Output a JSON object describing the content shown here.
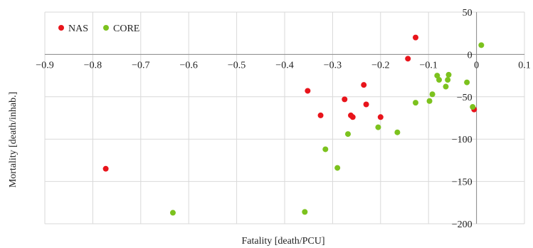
{
  "chart_data": {
    "type": "scatter",
    "title": "",
    "xlabel": "Fatality [death/PCU]",
    "ylabel": "Mortality [death/inhab.]",
    "xlim": [
      -0.9,
      0.1
    ],
    "ylim": [
      -200,
      50
    ],
    "xticks": [
      -0.9,
      -0.8,
      -0.7,
      -0.6,
      -0.5,
      -0.4,
      -0.3,
      -0.2,
      -0.1,
      0,
      0.1
    ],
    "xtick_labels": [
      "−0.9",
      "−0.8",
      "−0.7",
      "−0.6",
      "−0.5",
      "−0.4",
      "−0.3",
      "−0.2",
      "−0.1",
      "0",
      "0.1"
    ],
    "yticks": [
      50,
      0,
      -50,
      -100,
      -150,
      -200
    ],
    "ytick_labels": [
      "50",
      "0",
      "−50",
      "−100",
      "−150",
      "−200"
    ],
    "grid": true,
    "legend_position": "top-left",
    "series": [
      {
        "name": "NAS",
        "color": "#e8141b",
        "points": [
          [
            -0.773,
            -135
          ],
          [
            -0.352,
            -43
          ],
          [
            -0.325,
            -72
          ],
          [
            -0.275,
            -53
          ],
          [
            -0.262,
            -72
          ],
          [
            -0.258,
            -74
          ],
          [
            -0.235,
            -36
          ],
          [
            -0.23,
            -59
          ],
          [
            -0.2,
            -74
          ],
          [
            -0.143,
            -5
          ],
          [
            -0.127,
            20
          ],
          [
            -0.005,
            -65
          ]
        ]
      },
      {
        "name": "CORE",
        "color": "#7cc21e",
        "points": [
          [
            -0.633,
            -187
          ],
          [
            -0.358,
            -186
          ],
          [
            -0.315,
            -112
          ],
          [
            -0.29,
            -134
          ],
          [
            -0.268,
            -94
          ],
          [
            -0.205,
            -86
          ],
          [
            -0.165,
            -92
          ],
          [
            -0.127,
            -57
          ],
          [
            -0.098,
            -55
          ],
          [
            -0.092,
            -47
          ],
          [
            -0.082,
            -25
          ],
          [
            -0.078,
            -30
          ],
          [
            -0.064,
            -38
          ],
          [
            -0.06,
            -30
          ],
          [
            -0.058,
            -24
          ],
          [
            -0.02,
            -33
          ],
          [
            -0.008,
            -62
          ],
          [
            0.01,
            11
          ]
        ]
      }
    ]
  }
}
